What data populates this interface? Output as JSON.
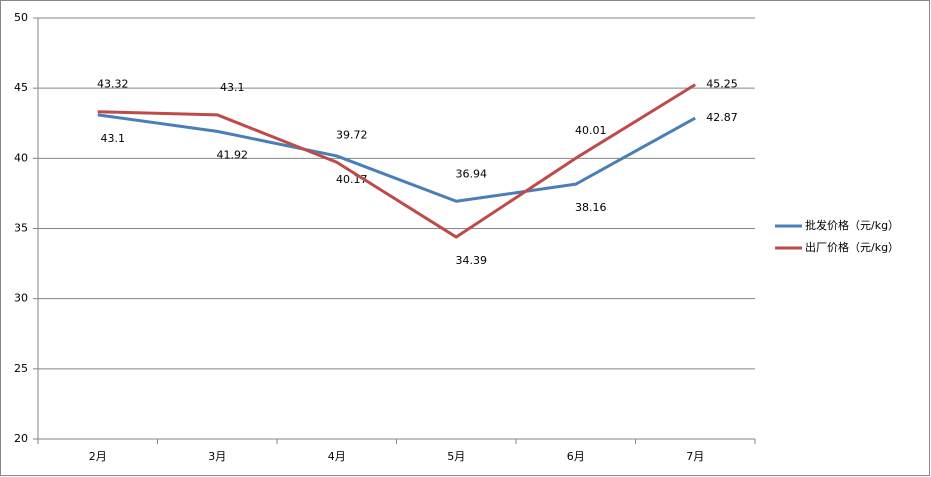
{
  "chart_data": {
    "type": "line",
    "categories": [
      "2月",
      "3月",
      "4月",
      "5月",
      "6月",
      "7月"
    ],
    "series": [
      {
        "name": "批发价格（元/kg）",
        "color": "#4a7ebb",
        "values": [
          43.1,
          41.92,
          40.17,
          36.94,
          38.16,
          42.87
        ]
      },
      {
        "name": "出厂价格（元/kg）",
        "color": "#be4b48",
        "values": [
          43.32,
          43.1,
          39.72,
          34.39,
          40.01,
          45.25
        ]
      }
    ],
    "ylim": [
      20,
      50
    ],
    "yticks": [
      20,
      25,
      30,
      35,
      40,
      45,
      50
    ],
    "grid": true,
    "legend": "right"
  }
}
